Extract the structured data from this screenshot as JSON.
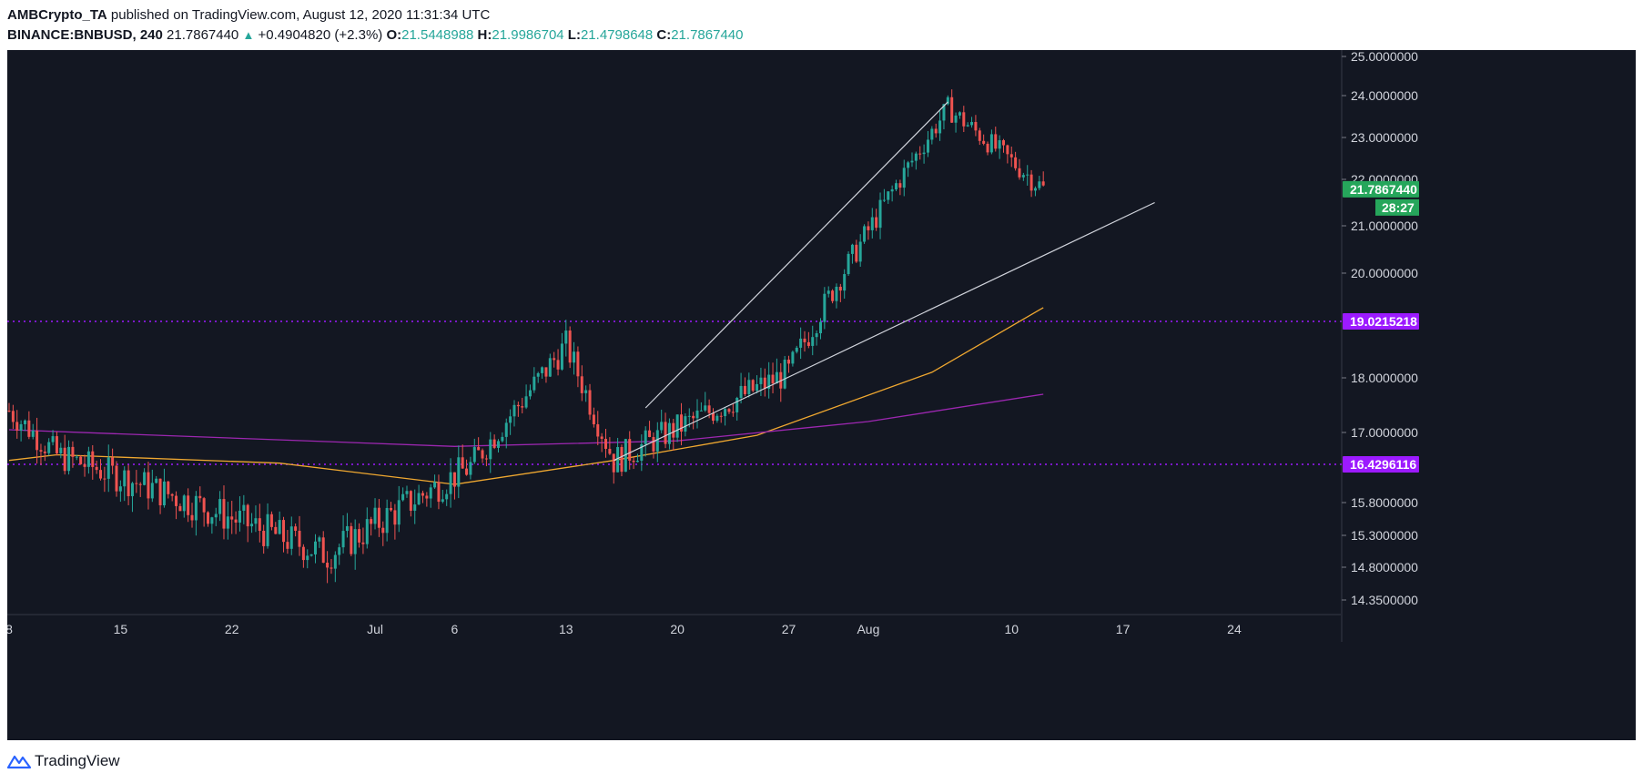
{
  "header": {
    "publisher": "AMBCrypto_TA",
    "published_text": "published on TradingView.com, August 12, 2020 11:31:34 UTC",
    "symbol": "BINANCE:BNBUSD, 240",
    "last": "21.7867440",
    "change": "+0.4904820 (+2.3%)",
    "o_label": "O:",
    "o_val": "21.5448988",
    "h_label": "H:",
    "h_val": "21.9986704",
    "l_label": "L:",
    "l_val": "21.4798648",
    "c_label": "C:",
    "c_val": "21.7867440"
  },
  "footer": {
    "brand": "TradingView"
  },
  "colors": {
    "background": "#131722",
    "bull": "#26a69a",
    "bear": "#ef5350",
    "sma50": "#f0a830",
    "sma200": "#9c27b0",
    "level": "#9c1aff",
    "price_tag": "#26a65b",
    "trendline": "#d1d4dc"
  },
  "chart_data": {
    "type": "candlestick",
    "symbol": "BINANCE:BNBUSD",
    "timeframe": "240",
    "y_ticks": [
      "25.0000000",
      "24.0000000",
      "23.0000000",
      "22.0000000",
      "21.0000000",
      "20.0000000",
      "18.0000000",
      "17.0000000",
      "15.8000000",
      "15.3000000",
      "14.8000000",
      "14.3500000"
    ],
    "x_ticks": [
      "8",
      "15",
      "22",
      "Jul",
      "6",
      "13",
      "20",
      "27",
      "Aug",
      "10",
      "17",
      "24"
    ],
    "price_tags": {
      "last_price": "21.7867440",
      "countdown": "28:27",
      "resistance": "19.0215218",
      "support": "16.4296116"
    },
    "horizontal_levels": [
      19.0215218,
      16.4296116
    ],
    "key_prices": [
      {
        "date": "2020-06-08",
        "price": 17.4
      },
      {
        "date": "2020-06-11",
        "price": 16.6
      },
      {
        "date": "2020-06-28",
        "price": 15.0
      },
      {
        "date": "2020-07-07",
        "price": 16.4
      },
      {
        "date": "2020-07-13",
        "price": 18.6
      },
      {
        "date": "2020-07-16",
        "price": 16.5
      },
      {
        "date": "2020-07-27",
        "price": 18.1
      },
      {
        "date": "2020-08-06",
        "price": 23.7
      },
      {
        "date": "2020-08-12",
        "price": 21.79
      }
    ],
    "moving_averages": [
      {
        "points": [
          [
            "2020-06-08",
            16.5
          ],
          [
            "2020-06-11",
            16.6
          ],
          [
            "2020-06-25",
            16.45
          ],
          [
            "2020-07-06",
            16.1
          ],
          [
            "2020-07-16",
            16.5
          ],
          [
            "2020-07-25",
            16.95
          ],
          [
            "2020-08-05",
            18.1
          ],
          [
            "2020-08-12",
            19.3
          ]
        ]
      },
      {
        "points": [
          [
            "2020-06-08",
            17.05
          ],
          [
            "2020-07-06",
            16.75
          ],
          [
            "2020-07-20",
            16.85
          ],
          [
            "2020-08-01",
            17.2
          ],
          [
            "2020-08-12",
            17.7
          ]
        ]
      }
    ],
    "trendlines": [
      {
        "from": [
          "2020-07-16",
          16.5
        ],
        "to": [
          "2020-08-19",
          21.5
        ]
      },
      {
        "from": [
          "2020-07-18",
          17.45
        ],
        "to": [
          "2020-08-06",
          23.85
        ]
      }
    ]
  }
}
